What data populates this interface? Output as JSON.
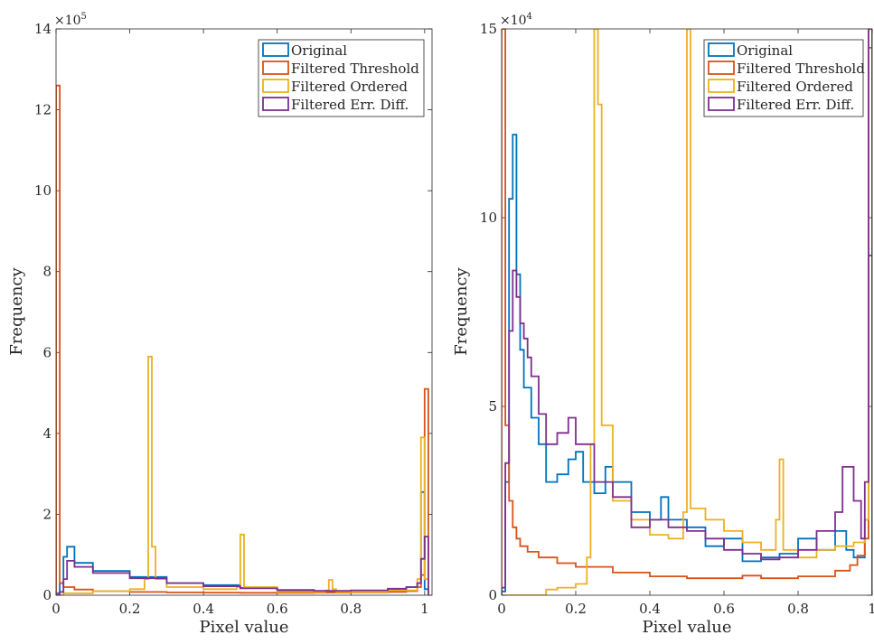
{
  "chart_data": [
    {
      "type": "histogram",
      "xlabel": "Pixel value",
      "ylabel": "Frequency",
      "exponent_label": "×10",
      "exponent_power": "5",
      "xlim": [
        0,
        1.02
      ],
      "ylim": [
        0,
        1400000
      ],
      "xticks": [
        0,
        0.2,
        0.4,
        0.6,
        0.8,
        1
      ],
      "xtick_labels": [
        "0",
        "0.2",
        "0.4",
        "0.6",
        "0.8",
        "1"
      ],
      "yticks": [
        0,
        200000,
        400000,
        600000,
        800000,
        1000000,
        1200000,
        1400000
      ],
      "ytick_labels": [
        "0",
        "2",
        "4",
        "6",
        "8",
        "10",
        "12",
        "14"
      ],
      "legend": "top-right",
      "bin_width": 0.01,
      "series": [
        {
          "name": "Original",
          "color": "#0072BD",
          "x": [
            0,
            0.01,
            0.02,
            0.03,
            0.05,
            0.1,
            0.2,
            0.3,
            0.4,
            0.5,
            0.6,
            0.7,
            0.8,
            0.9,
            0.95,
            0.98,
            0.99,
            1.0
          ],
          "y": [
            5000,
            30000,
            95000,
            120000,
            80000,
            60000,
            45000,
            30000,
            25000,
            18000,
            12000,
            10000,
            9000,
            15000,
            20000,
            30000,
            255000,
            15000
          ]
        },
        {
          "name": "Filtered Threshold",
          "color": "#D95319",
          "x": [
            0,
            0.01,
            0.02,
            0.05,
            0.1,
            0.2,
            0.3,
            0.4,
            0.5,
            0.6,
            0.7,
            0.8,
            0.9,
            0.95,
            0.98,
            0.99,
            1.0
          ],
          "y": [
            1260000,
            30000,
            20000,
            14000,
            10000,
            8000,
            7000,
            6500,
            6000,
            6000,
            6500,
            7000,
            8000,
            10000,
            20000,
            50000,
            510000
          ]
        },
        {
          "name": "Filtered Ordered",
          "color": "#EDB120",
          "x": [
            0,
            0.02,
            0.1,
            0.2,
            0.24,
            0.25,
            0.26,
            0.27,
            0.3,
            0.4,
            0.49,
            0.5,
            0.51,
            0.6,
            0.73,
            0.74,
            0.75,
            0.76,
            0.9,
            0.98,
            0.99,
            1.0
          ],
          "y": [
            0,
            5000,
            10000,
            15000,
            40000,
            590000,
            120000,
            40000,
            20000,
            15000,
            20000,
            150000,
            20000,
            8000,
            12000,
            38000,
            15000,
            8000,
            12000,
            40000,
            390000,
            40000
          ]
        },
        {
          "name": "Filtered Err. Diff.",
          "color": "#7E2F8E",
          "x": [
            0,
            0.01,
            0.02,
            0.03,
            0.05,
            0.1,
            0.2,
            0.3,
            0.4,
            0.5,
            0.6,
            0.7,
            0.8,
            0.9,
            0.95,
            0.98,
            0.99,
            1.0
          ],
          "y": [
            0,
            8000,
            40000,
            85000,
            70000,
            55000,
            42000,
            30000,
            22000,
            17000,
            13000,
            11000,
            12000,
            16000,
            20000,
            30000,
            90000,
            145000
          ]
        }
      ]
    },
    {
      "type": "histogram",
      "xlabel": "Pixel value",
      "ylabel": "Frequency",
      "exponent_label": "×10",
      "exponent_power": "4",
      "xlim": [
        0,
        1.0
      ],
      "ylim": [
        0,
        150000
      ],
      "xticks": [
        0,
        0.2,
        0.4,
        0.6,
        0.8,
        1
      ],
      "xtick_labels": [
        "0",
        "0.2",
        "0.4",
        "0.6",
        "0.8",
        "1"
      ],
      "yticks": [
        0,
        50000,
        100000,
        150000
      ],
      "ytick_labels": [
        "0",
        "5",
        "10",
        "15"
      ],
      "legend": "top-right",
      "bin_width": 0.01,
      "series": [
        {
          "name": "Original",
          "color": "#0072BD",
          "x": [
            0,
            0.01,
            0.02,
            0.03,
            0.04,
            0.05,
            0.06,
            0.08,
            0.1,
            0.12,
            0.15,
            0.18,
            0.2,
            0.22,
            0.25,
            0.28,
            0.3,
            0.35,
            0.4,
            0.43,
            0.45,
            0.5,
            0.55,
            0.6,
            0.65,
            0.7,
            0.75,
            0.8,
            0.85,
            0.9,
            0.93,
            0.95,
            0.98,
            0.99
          ],
          "y": [
            1000,
            30000,
            105000,
            122000,
            85000,
            65000,
            55000,
            47000,
            40000,
            30000,
            32000,
            36000,
            38000,
            30000,
            27000,
            34000,
            30000,
            22000,
            20000,
            26000,
            20000,
            18000,
            13000,
            15000,
            9000,
            10000,
            11000,
            15000,
            12000,
            17000,
            12000,
            10000,
            20000,
            90000
          ]
        },
        {
          "name": "Filtered Threshold",
          "color": "#D95319",
          "x": [
            0,
            0.01,
            0.02,
            0.03,
            0.04,
            0.05,
            0.07,
            0.1,
            0.15,
            0.2,
            0.3,
            0.4,
            0.5,
            0.6,
            0.65,
            0.7,
            0.8,
            0.9,
            0.94,
            0.96,
            0.98,
            0.99
          ],
          "y": [
            150000,
            45000,
            25000,
            18000,
            15000,
            13000,
            11500,
            10000,
            8500,
            7500,
            6000,
            5000,
            4500,
            4500,
            5200,
            4500,
            5000,
            6500,
            8000,
            10500,
            15000,
            145000
          ]
        },
        {
          "name": "Filtered Ordered",
          "color": "#EDB120",
          "x": [
            0,
            0.05,
            0.1,
            0.12,
            0.15,
            0.2,
            0.23,
            0.24,
            0.25,
            0.26,
            0.27,
            0.3,
            0.35,
            0.4,
            0.45,
            0.49,
            0.5,
            0.51,
            0.55,
            0.6,
            0.65,
            0.7,
            0.73,
            0.74,
            0.75,
            0.76,
            0.8,
            0.85,
            0.9,
            0.95,
            0.98,
            0.99
          ],
          "y": [
            0,
            0,
            0,
            1500,
            2000,
            3000,
            10000,
            40000,
            150000,
            130000,
            45000,
            25000,
            20000,
            16000,
            15000,
            22000,
            150000,
            23000,
            20000,
            17000,
            14000,
            12000,
            12000,
            20000,
            36000,
            12000,
            10000,
            12000,
            13000,
            14000,
            20000,
            150000
          ]
        },
        {
          "name": "Filtered Err. Diff.",
          "color": "#7E2F8E",
          "x": [
            0,
            0.01,
            0.02,
            0.03,
            0.04,
            0.05,
            0.06,
            0.07,
            0.08,
            0.1,
            0.12,
            0.15,
            0.18,
            0.2,
            0.25,
            0.3,
            0.35,
            0.4,
            0.45,
            0.5,
            0.55,
            0.6,
            0.65,
            0.7,
            0.75,
            0.8,
            0.85,
            0.9,
            0.92,
            0.95,
            0.97,
            0.98,
            0.99
          ],
          "y": [
            2000,
            35000,
            70000,
            86000,
            79000,
            72000,
            68000,
            63000,
            58000,
            48000,
            40000,
            43000,
            47000,
            40000,
            30000,
            26000,
            18000,
            20000,
            18000,
            17000,
            15000,
            12000,
            11000,
            9500,
            10000,
            12000,
            17000,
            22000,
            34000,
            25000,
            15000,
            30000,
            150000
          ]
        }
      ]
    }
  ]
}
